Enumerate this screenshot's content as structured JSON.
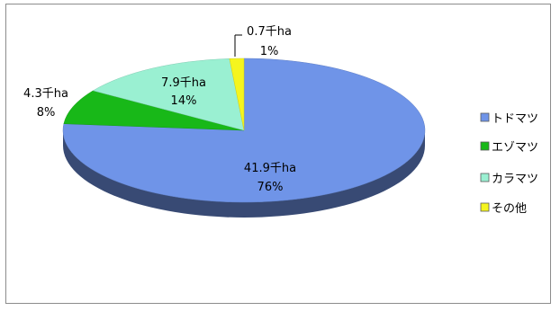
{
  "chart_data": {
    "type": "pie",
    "style": "3d",
    "title": "",
    "slices": [
      {
        "name": "トドマツ",
        "value_label": "41.9千ha",
        "percent_label": "76%",
        "value": 41.9,
        "color": "#6f94e8"
      },
      {
        "name": "エゾマツ",
        "value_label": "4.3千ha",
        "percent_label": "8%",
        "value": 4.3,
        "color": "#18b818"
      },
      {
        "name": "カラマツ",
        "value_label": "7.9千ha",
        "percent_label": "14%",
        "value": 7.9,
        "color": "#9af0d2"
      },
      {
        "name": "その他",
        "value_label": "0.7千ha",
        "percent_label": "1%",
        "value": 0.7,
        "color": "#f5f51e"
      }
    ],
    "legend": {
      "position": "right",
      "entries": [
        "トドマツ",
        "エゾマツ",
        "カラマツ",
        "その他"
      ]
    }
  }
}
